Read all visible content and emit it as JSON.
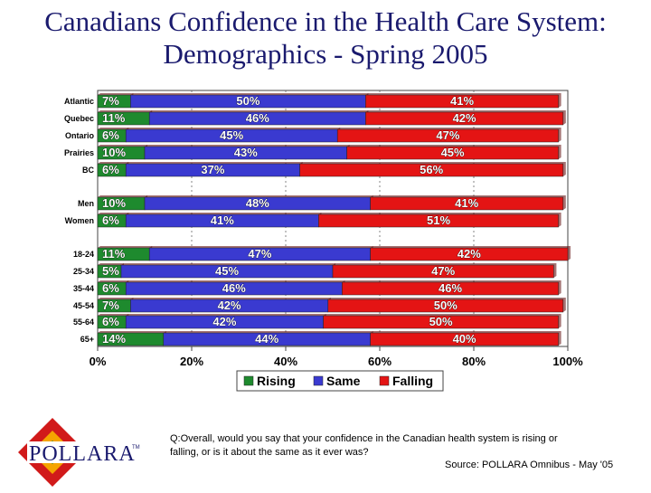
{
  "title": "Canadians Confidence in the Health Care System: Demographics - Spring 2005",
  "question": "Q:Overall, would you say that your confidence in the Canadian health system is rising or falling, or is it about the same as it ever was?",
  "source": "Source:  POLLARA Omnibus - May '05",
  "logo_text": "POLLARA",
  "colors": {
    "Rising": "#1e8a2e",
    "Same": "#3a3ad0",
    "Falling": "#e41414",
    "title": "#1a1a6e"
  },
  "chart_data": {
    "type": "bar",
    "orientation": "horizontal",
    "stacked": true,
    "categories": [
      "Atlantic",
      "Quebec",
      "Ontario",
      "Prairies",
      "BC",
      "Men",
      "Women",
      "18-24",
      "25-34",
      "35-44",
      "45-54",
      "55-64",
      "65+"
    ],
    "series": [
      {
        "name": "Rising",
        "values": [
          7,
          11,
          6,
          10,
          6,
          10,
          6,
          11,
          5,
          6,
          7,
          6,
          14
        ]
      },
      {
        "name": "Same",
        "values": [
          50,
          46,
          45,
          43,
          37,
          48,
          41,
          47,
          45,
          46,
          42,
          42,
          44
        ]
      },
      {
        "name": "Falling",
        "values": [
          41,
          42,
          47,
          45,
          56,
          41,
          51,
          42,
          47,
          46,
          50,
          50,
          40
        ]
      }
    ],
    "xlim": [
      0,
      100
    ],
    "xticks": [
      "0%",
      "20%",
      "40%",
      "60%",
      "80%",
      "100%"
    ],
    "legend_position": "bottom",
    "grid": true
  }
}
